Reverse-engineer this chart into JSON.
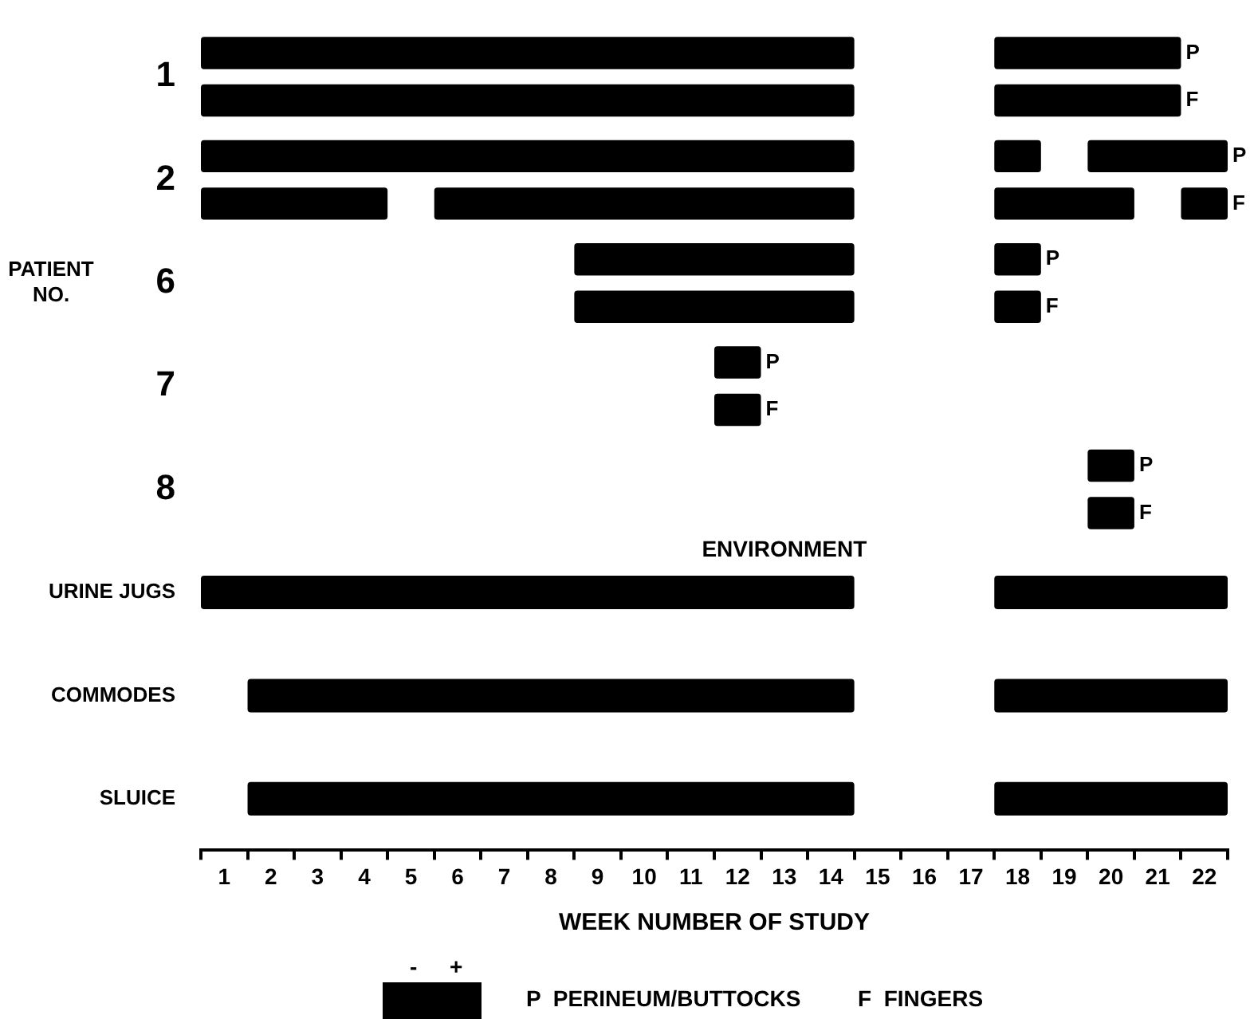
{
  "chart_data": {
    "type": "bar",
    "orientation": "horizontal",
    "categories": [
      "1",
      "2",
      "6",
      "7",
      "8",
      "URINE JUGS",
      "COMMODES",
      "SLUICE"
    ],
    "series": [
      {
        "name": "P",
        "color": "#000000",
        "base": [
          0.5,
          0.5,
          8.5,
          11.5,
          19.5,
          null,
          null,
          null
        ],
        "values": [
          14,
          14,
          6,
          1,
          1,
          null,
          null,
          null
        ]
      },
      {
        "color": "#000000",
        "base": [
          17.5,
          17.5,
          17.5,
          null,
          null,
          null,
          null,
          null
        ],
        "values": [
          4,
          1,
          1,
          null,
          null,
          null,
          null,
          null
        ]
      },
      {
        "color": "#000000",
        "base": [
          null,
          19.5,
          null,
          null,
          null,
          null,
          null,
          null
        ],
        "values": [
          null,
          3,
          null,
          null,
          null,
          null,
          null,
          null
        ]
      },
      {
        "name": "F",
        "color": "#000000",
        "base": [
          0.5,
          0.5,
          8.5,
          11.5,
          19.5,
          null,
          null,
          null
        ],
        "values": [
          14,
          4,
          6,
          1,
          1,
          null,
          null,
          null
        ]
      },
      {
        "color": "#000000",
        "base": [
          17.5,
          5.5,
          17.5,
          null,
          null,
          null,
          null,
          null
        ],
        "values": [
          4,
          9,
          1,
          null,
          null,
          null,
          null,
          null
        ]
      },
      {
        "color": "#000000",
        "base": [
          null,
          17.5,
          null,
          null,
          null,
          null,
          null,
          null
        ],
        "values": [
          null,
          3,
          null,
          null,
          null,
          null,
          null,
          null
        ]
      },
      {
        "color": "#000000",
        "base": [
          null,
          21.5,
          null,
          null,
          null,
          null,
          null,
          null
        ],
        "values": [
          null,
          1,
          null,
          null,
          null,
          null,
          null,
          null
        ]
      },
      {
        "color": "#000000",
        "base": [
          null,
          null,
          null,
          null,
          null,
          0.5,
          1.5,
          1.5
        ],
        "values": [
          null,
          null,
          null,
          null,
          null,
          14,
          13,
          13
        ]
      },
      {
        "color": "#000000",
        "base": [
          null,
          null,
          null,
          null,
          null,
          17.5,
          17.5,
          17.5
        ],
        "values": [
          null,
          null,
          null,
          null,
          null,
          5,
          5,
          5
        ]
      }
    ],
    "xlim": [
      0.5,
      22.5
    ],
    "xticks": [
      {
        "value": 0.5,
        "label": null
      },
      1,
      {
        "value": 1.5,
        "label": null
      },
      2,
      {
        "value": 2.5,
        "label": null
      },
      3,
      {
        "value": 3.5,
        "label": null
      },
      4,
      {
        "value": 4.5,
        "label": null
      },
      5,
      {
        "value": 5.5,
        "label": null
      },
      6,
      {
        "value": 6.5,
        "label": null
      },
      7,
      {
        "value": 7.5,
        "label": null
      },
      8,
      {
        "value": 8.5,
        "label": null
      },
      9,
      {
        "value": 9.5,
        "label": null
      },
      10,
      {
        "value": 10.5,
        "label": null
      },
      11,
      {
        "value": 11.5,
        "label": null
      },
      12,
      {
        "value": 12.5,
        "label": null
      },
      13,
      {
        "value": 13.5,
        "label": null
      },
      14,
      {
        "value": 14.5,
        "label": null
      },
      15,
      {
        "value": 15.5,
        "label": null
      },
      16,
      {
        "value": 16.5,
        "label": null
      },
      17,
      {
        "value": 17.5,
        "label": null
      },
      18,
      {
        "value": 18.5,
        "label": null
      },
      19,
      {
        "value": 19.5,
        "label": null
      },
      20,
      {
        "value": 20.5,
        "label": null
      },
      21,
      {
        "value": 21.5,
        "label": null
      },
      22,
      {
        "value": 22.5,
        "label": null
      }
    ],
    "xlabel": "WEEK NUMBER OF STUDY",
    "ylabel": "PATIENT NO.",
    "annotations": [
      "ENVIRONMENT",
      "-",
      "+",
      "P  PERINEUM/BUTTOCKS",
      "F  FINGERS"
    ],
    "grid": false,
    "legend": false
  }
}
